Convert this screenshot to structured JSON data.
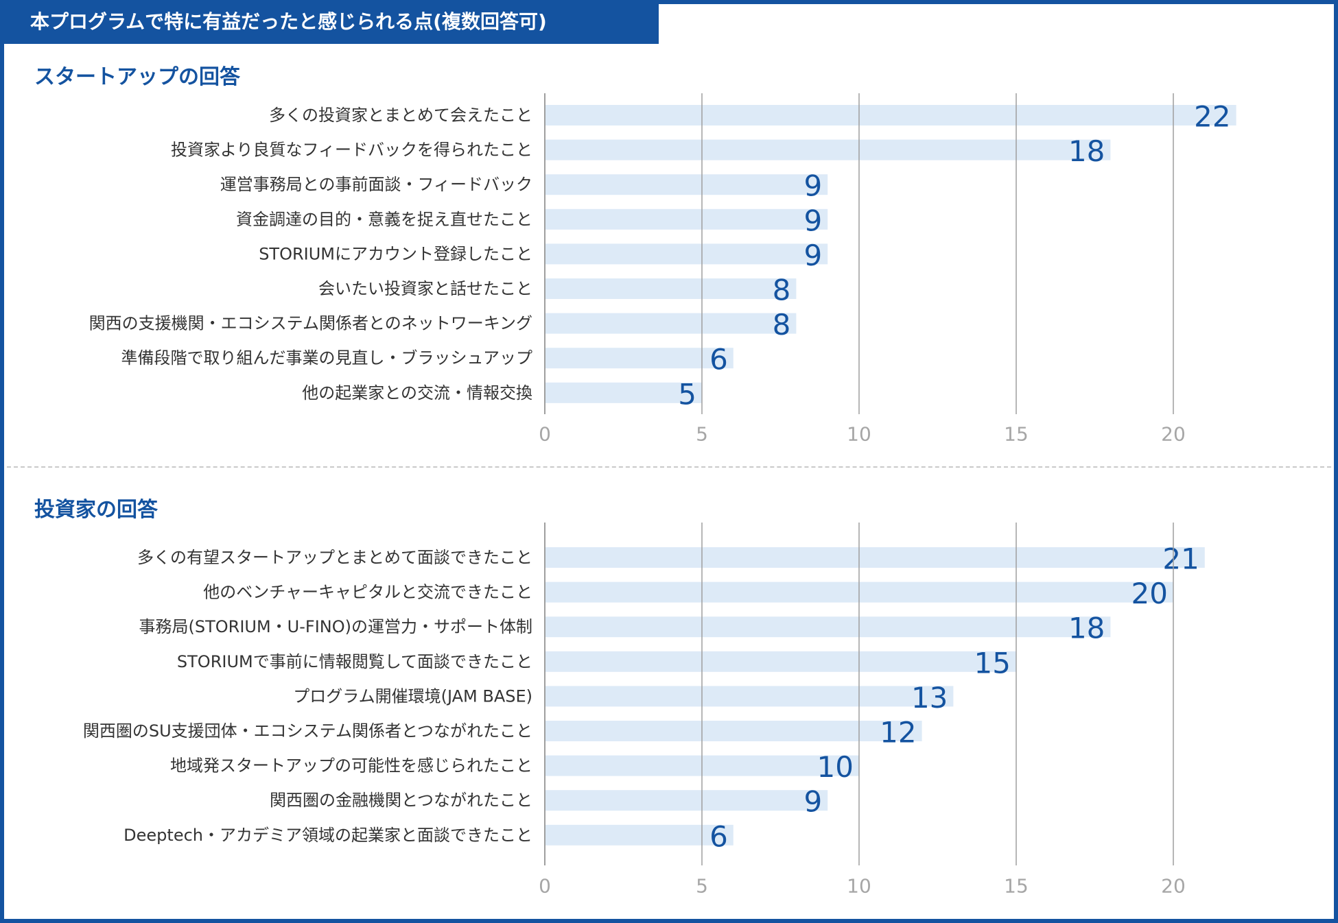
{
  "header": {
    "title": "本プログラムで特に有益だったと感じられる点(複数回答可)"
  },
  "colors": {
    "accent": "#1453a0",
    "bar": "#ddeaf7",
    "grid": "#9e9e9e",
    "tick": "#a6a6a6"
  },
  "chart_data": [
    {
      "type": "bar",
      "orientation": "horizontal",
      "title": "スタートアップの回答",
      "categories": [
        "多くの投資家とまとめて会えたこと",
        "投資家より良質なフィードバックを得られたこと",
        "運営事務局との事前面談・フィードバック",
        "資金調達の目的・意義を捉え直せたこと",
        "STORIUMにアカウント登録したこと",
        "会いたい投資家と話せたこと",
        "関西の支援機関・エコシステム関係者とのネットワーキング",
        "準備段階で取り組んだ事業の見直し・ブラッシュアップ",
        "他の起業家との交流・情報交換"
      ],
      "values": [
        22,
        18,
        9,
        9,
        9,
        8,
        8,
        6,
        5
      ],
      "xlim": [
        0,
        22
      ],
      "xticks": [
        0,
        5,
        10,
        15,
        20
      ],
      "grid": true,
      "xlabel": "",
      "ylabel": ""
    },
    {
      "type": "bar",
      "orientation": "horizontal",
      "title": "投資家の回答",
      "categories": [
        "多くの有望スタートアップとまとめて面談できたこと",
        "他のベンチャーキャピタルと交流できたこと",
        "事務局(STORIUM・U-FINO)の運営力・サポート体制",
        "STORIUMで事前に情報閲覧して面談できたこと",
        "プログラム開催環境(JAM BASE)",
        "関西圏のSU支援団体・エコシステム関係者とつながれたこと",
        "地域発スタートアップの可能性を感じられたこと",
        "関西圏の金融機関とつながれたこと",
        "Deeptech・アカデミア領域の起業家と面談できたこと"
      ],
      "values": [
        21,
        20,
        18,
        15,
        13,
        12,
        10,
        9,
        6
      ],
      "xlim": [
        0,
        22
      ],
      "xticks": [
        0,
        5,
        10,
        15,
        20
      ],
      "grid": true,
      "xlabel": "",
      "ylabel": ""
    }
  ]
}
